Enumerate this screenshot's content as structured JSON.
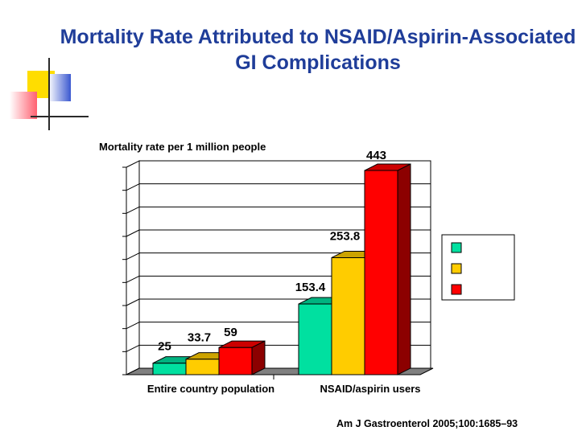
{
  "slide": {
    "title": "Mortality Rate Attributed to NSAID/Aspirin-Associated GI Complications",
    "citation": "Am J Gastroenterol 2005;100:1685–93"
  },
  "chart_data": {
    "type": "bar",
    "title": "",
    "ylabel": "Mortality rate per 1 million people",
    "xlabel": "",
    "categories": [
      "Entire country population",
      "NSAID/aspirin users"
    ],
    "series": [
      {
        "name": "",
        "color": "#00e0a0",
        "values": [
          25,
          153.4
        ]
      },
      {
        "name": "",
        "color": "#ffcc00",
        "values": [
          33.7,
          253.8
        ]
      },
      {
        "name": "",
        "color": "#ff0000",
        "values": [
          59,
          443
        ]
      }
    ],
    "data_labels": [
      [
        "25",
        "153.4"
      ],
      [
        "33.7",
        "253.8"
      ],
      [
        "59",
        "443"
      ]
    ],
    "ylim": [
      0,
      450
    ],
    "gridlines": 9,
    "grid": true,
    "legend": "right",
    "style": "3d"
  }
}
